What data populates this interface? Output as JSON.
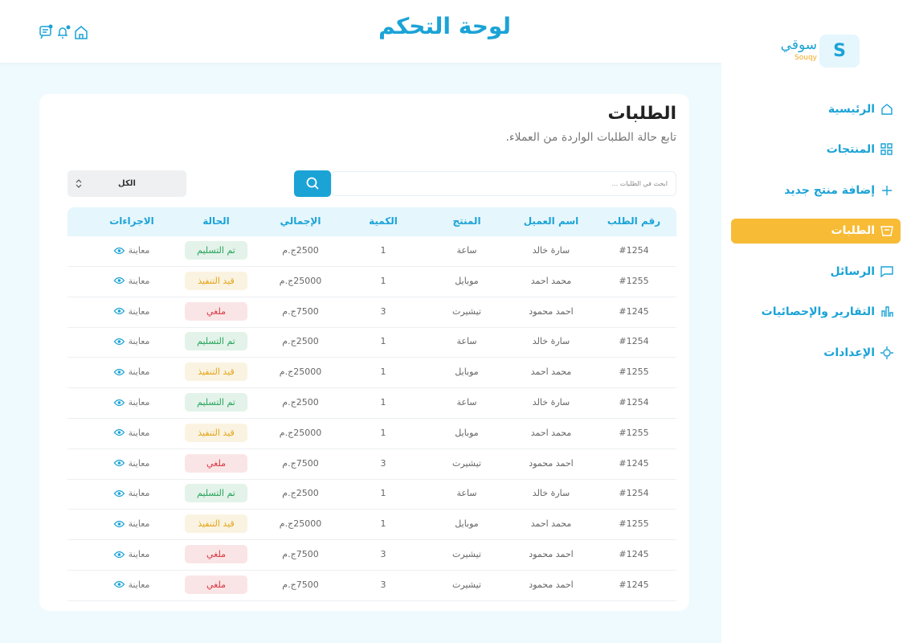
{
  "header": {
    "title": "لوحة التحكم"
  },
  "logo": {
    "mark": "S",
    "arabic": "سوقي",
    "latin": "Souqy"
  },
  "nav": {
    "items": [
      {
        "label": "الرئيسية"
      },
      {
        "label": "المنتجات"
      },
      {
        "label": "إضافة منتج جديد"
      },
      {
        "label": "الطلبات",
        "active": true
      },
      {
        "label": "الرسائل"
      },
      {
        "label": "التقارير والإحصائيات"
      },
      {
        "label": "الإعدادات"
      }
    ]
  },
  "orders": {
    "title": "الطلبات",
    "subtitle": "تابع حالة الطلبات الواردة من العملاء.",
    "search_placeholder": "ابحث في الطلبات ...",
    "filter": "الكل",
    "columns": [
      "رقم الطلب",
      "اسم العميل",
      "المنتج",
      "الكمية",
      "الإجمالي",
      "الحالة",
      "الاجراءات"
    ],
    "rows": [
      [
        "#1254",
        "سارة خالد",
        "ساعة",
        1,
        "2500ج.م",
        {
          "label": "تم التسليم",
          "color": "#27a25a"
        },
        "معاينة"
      ],
      [
        "#1255",
        "محمد احمد",
        "موبايل",
        1,
        "25000ج.م",
        {
          "label": "قيد التنفيذ",
          "color": "#e2a418"
        },
        "معاينة"
      ],
      [
        "#1245",
        "احمد محمود",
        "تيشيرت",
        3,
        "7500ج.م",
        {
          "label": "ملغي",
          "color": "#d6363f"
        },
        "معاينة"
      ],
      [
        "#1254",
        "سارة خالد",
        "ساعة",
        1,
        "2500ج.م",
        {
          "label": "تم التسليم",
          "color": "#27a25a"
        },
        "معاينة"
      ],
      [
        "#1255",
        "محمد احمد",
        "موبايل",
        1,
        "25000ج.م",
        {
          "label": "قيد التنفيذ",
          "color": "#e2a418"
        },
        "معاينة"
      ],
      [
        "#1254",
        "سارة خالد",
        "ساعة",
        1,
        "2500ج.م",
        {
          "label": "تم التسليم",
          "color": "#27a25a"
        },
        "معاينة"
      ],
      [
        "#1255",
        "محمد احمد",
        "موبايل",
        1,
        "25000ج.م",
        {
          "label": "قيد التنفيذ",
          "color": "#e2a418"
        },
        "معاينة"
      ],
      [
        "#1245",
        "احمد محمود",
        "تيشيرت",
        3,
        "7500ج.م",
        {
          "label": "ملغي",
          "color": "#d6363f"
        },
        "معاينة"
      ],
      [
        "#1254",
        "سارة خالد",
        "ساعة",
        1,
        "2500ج.م",
        {
          "label": "تم التسليم",
          "color": "#27a25a"
        },
        "معاينة"
      ],
      [
        "#1255",
        "محمد احمد",
        "موبايل",
        1,
        "25000ج.م",
        {
          "label": "قيد التنفيذ",
          "color": "#e2a418"
        },
        "معاينة"
      ],
      [
        "#1245",
        "احمد محمود",
        "تيشيرت",
        3,
        "7500ج.م",
        {
          "label": "ملغي",
          "color": "#d6363f"
        },
        "معاينة"
      ],
      [
        "#1245",
        "احمد محمود",
        "تيشيرت",
        3,
        "7500ج.م",
        {
          "label": "ملغي",
          "color": "#d6363f"
        },
        "معاينة"
      ]
    ]
  }
}
